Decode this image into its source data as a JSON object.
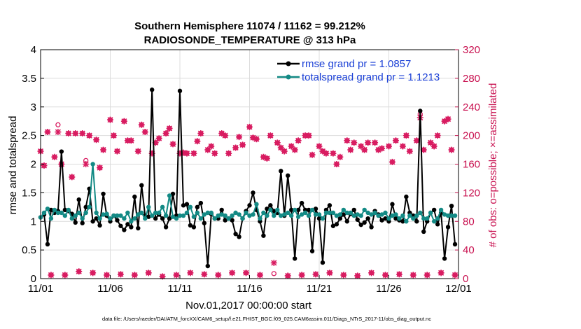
{
  "chart_data": {
    "type": "line",
    "title": "Southern Hemisphere 11074 / 11162 = 99.212%",
    "subtitle": "RADIOSONDE_TEMPERATURE @ 313 hPa",
    "xlabel": "Nov.01,2017 00:00:00 start",
    "ylabel": "rmse and totalspread",
    "ylabel_right": "# of obs: o=possible; ×=assimilated",
    "footnote": "data file: /Users/raeder/DAI/ATM_forcXX/CAM6_setup/f.e21.FHIST_BGC.f09_025.CAM6assim.011/Diags_NTrS_2017-11/obs_diag_output.nc",
    "xlim": [
      0,
      30
    ],
    "ylim": [
      0,
      4
    ],
    "ylim_right": [
      0,
      320
    ],
    "x_ticks": [
      0,
      5,
      10,
      15,
      20,
      25,
      30
    ],
    "x_tick_labels": [
      "11/01",
      "11/06",
      "11/11",
      "11/16",
      "11/21",
      "11/26",
      "12/01"
    ],
    "y_ticks": [
      0,
      0.5,
      1,
      1.5,
      2,
      2.5,
      3,
      3.5,
      4
    ],
    "y_tick_labels": [
      "0",
      "0.5",
      "1",
      "1.5",
      "2",
      "2.5",
      "3",
      "3.5",
      "4"
    ],
    "y_ticks_right": [
      0,
      40,
      80,
      120,
      160,
      200,
      240,
      280,
      320
    ],
    "y_tick_labels_right": [
      "0",
      "40",
      "80",
      "120",
      "160",
      "200",
      "240",
      "280",
      "320"
    ],
    "legend": [
      {
        "label": "rmse grand pr = 1.0857",
        "color": "#000000",
        "marker": "dot"
      },
      {
        "label": "totalspread grand pr = 1.1213",
        "color": "#138a85",
        "marker": "dot"
      }
    ],
    "colors": {
      "rmse": "#000000",
      "spread": "#138a85",
      "obs": "#d81b60",
      "obs_label": "#c8104f"
    },
    "x": [
      0.0,
      0.25,
      0.5,
      0.75,
      1.0,
      1.25,
      1.5,
      1.75,
      2.0,
      2.25,
      2.5,
      2.75,
      3.0,
      3.25,
      3.5,
      3.75,
      4.0,
      4.25,
      4.5,
      4.75,
      5.0,
      5.25,
      5.5,
      5.75,
      6.0,
      6.25,
      6.5,
      6.75,
      7.0,
      7.25,
      7.5,
      7.75,
      8.0,
      8.25,
      8.5,
      8.75,
      9.0,
      9.25,
      9.5,
      9.75,
      10.0,
      10.25,
      10.5,
      10.75,
      11.0,
      11.25,
      11.5,
      11.75,
      12.0,
      12.25,
      12.5,
      12.75,
      13.0,
      13.25,
      13.5,
      13.75,
      14.0,
      14.25,
      14.5,
      14.75,
      15.0,
      15.25,
      15.5,
      15.75,
      16.0,
      16.25,
      16.5,
      16.75,
      17.0,
      17.25,
      17.5,
      17.75,
      18.0,
      18.25,
      18.5,
      18.75,
      19.0,
      19.25,
      19.5,
      19.75,
      20.0,
      20.25,
      20.5,
      20.75,
      21.0,
      21.25,
      21.5,
      21.75,
      22.0,
      22.25,
      22.5,
      22.75,
      23.0,
      23.25,
      23.5,
      23.75,
      24.0,
      24.25,
      24.5,
      24.75,
      25.0,
      25.25,
      25.5,
      25.75,
      26.0,
      26.25,
      26.5,
      26.75,
      27.0,
      27.25,
      27.5,
      27.75,
      28.0,
      28.25,
      28.5,
      28.75,
      29.0,
      29.25,
      29.5,
      29.75
    ],
    "series": [
      {
        "name": "rmse",
        "color": "#000000",
        "values": [
          1.07,
          1.12,
          0.6,
          1.2,
          1.15,
          1.18,
          2.22,
          1.2,
          1.18,
          1.13,
          0.98,
          1.38,
          0.97,
          1.25,
          1.57,
          1.0,
          1.05,
          0.93,
          1.48,
          1.1,
          1.0,
          1.1,
          1.02,
          0.92,
          0.85,
          0.95,
          0.9,
          1.43,
          0.88,
          1.63,
          1.1,
          1.08,
          3.3,
          1.05,
          1.12,
          1.05,
          0.9,
          1.05,
          1.48,
          1.1,
          3.28,
          1.28,
          1.3,
          0.93,
          0.9,
          1.25,
          1.32,
          0.97,
          0.22,
          1.13,
          1.05,
          1.05,
          1.2,
          1.02,
          1.05,
          1.02,
          0.78,
          0.73,
          1.05,
          1.18,
          1.28,
          1.5,
          1.2,
          1.0,
          0.75,
          1.22,
          1.28,
          1.18,
          1.15,
          1.88,
          1.1,
          1.8,
          1.2,
          0.35,
          1.2,
          1.32,
          1.2,
          1.2,
          0.48,
          1.22,
          1.05,
          0.28,
          1.2,
          1.28,
          0.92,
          0.95,
          1.05,
          1.12,
          1.0,
          1.13,
          1.2,
          1.03,
          0.94,
          0.98,
          1.05,
          0.9,
          1.18,
          1.12,
          1.02,
          1.05,
          1.0,
          1.3,
          1.05,
          1.02,
          1.0,
          1.43,
          1.15,
          1.1,
          1.0,
          2.93,
          0.82,
          1.0,
          1.15,
          1.2,
          0.95,
          1.15,
          0.35,
          0.9,
          1.27,
          0.6
        ]
      },
      {
        "name": "totalspread",
        "color": "#138a85",
        "values": [
          1.07,
          1.15,
          1.22,
          1.05,
          1.2,
          1.15,
          1.15,
          1.1,
          1.2,
          1.05,
          1.1,
          1.15,
          1.05,
          1.15,
          1.25,
          2.0,
          1.15,
          1.05,
          1.12,
          1.13,
          1.05,
          1.1,
          1.1,
          1.1,
          1.05,
          1.15,
          1.0,
          1.05,
          1.12,
          1.15,
          1.05,
          1.25,
          1.1,
          1.15,
          1.15,
          1.25,
          1.1,
          1.45,
          1.08,
          1.05,
          1.1,
          1.1,
          1.15,
          1.25,
          1.08,
          1.15,
          1.05,
          1.12,
          1.15,
          1.15,
          1.05,
          1.1,
          1.12,
          1.1,
          1.05,
          1.1,
          1.15,
          1.12,
          1.05,
          1.15,
          1.1,
          1.12,
          1.3,
          1.05,
          1.15,
          1.1,
          1.2,
          1.1,
          1.2,
          1.1,
          1.12,
          1.15,
          1.1,
          1.2,
          1.08,
          1.12,
          1.15,
          1.1,
          1.2,
          1.12,
          1.12,
          1.05,
          1.15,
          1.15,
          1.15,
          1.1,
          1.12,
          1.2,
          1.15,
          1.15,
          1.1,
          1.12,
          1.1,
          1.2,
          1.15,
          1.12,
          1.15,
          1.1,
          1.12,
          1.15,
          1.05,
          1.1,
          1.12,
          1.05,
          1.1,
          1.0,
          1.1,
          1.05,
          1.1,
          1.15,
          1.05,
          1.05,
          1.15,
          1.0,
          1.05,
          1.2,
          1.12,
          1.1,
          1.1,
          1.1
        ]
      },
      {
        "name": "obs_possible",
        "color": "#d81b60",
        "axis": "right",
        "marker": "circle",
        "values": [
          178,
          158,
          205,
          5,
          170,
          215,
          160,
          5,
          203,
          142,
          203,
          10,
          203,
          165,
          200,
          8,
          194,
          155,
          180,
          5,
          222,
          200,
          178,
          6,
          220,
          193,
          193,
          5,
          178,
          215,
          205,
          8,
          175,
          190,
          196,
          3,
          203,
          210,
          188,
          5,
          175,
          176,
          175,
          8,
          175,
          192,
          203,
          6,
          180,
          185,
          175,
          5,
          203,
          200,
          175,
          8,
          183,
          198,
          187,
          8,
          212,
          197,
          195,
          5,
          170,
          168,
          200,
          7,
          190,
          183,
          178,
          4,
          185,
          180,
          193,
          5,
          200,
          200,
          173,
          6,
          185,
          178,
          175,
          8,
          175,
          160,
          170,
          5,
          193,
          180,
          190,
          4,
          185,
          180,
          190,
          8,
          190,
          180,
          182,
          5,
          185,
          163,
          193,
          6,
          185,
          200,
          178,
          5,
          193,
          230,
          180,
          5,
          190,
          185,
          200,
          8,
          220,
          223,
          180,
          5
        ]
      },
      {
        "name": "obs_assimilated",
        "color": "#d81b60",
        "axis": "right",
        "marker": "x",
        "values": [
          178,
          158,
          205,
          5,
          170,
          205,
          160,
          5,
          203,
          142,
          203,
          10,
          203,
          160,
          200,
          8,
          194,
          155,
          180,
          5,
          222,
          200,
          178,
          6,
          220,
          193,
          193,
          5,
          178,
          215,
          205,
          8,
          175,
          190,
          196,
          3,
          203,
          210,
          188,
          5,
          175,
          176,
          175,
          8,
          175,
          192,
          203,
          6,
          180,
          185,
          175,
          5,
          203,
          200,
          175,
          8,
          183,
          198,
          187,
          8,
          212,
          197,
          195,
          5,
          170,
          168,
          200,
          22,
          190,
          183,
          178,
          4,
          185,
          180,
          193,
          5,
          200,
          200,
          173,
          6,
          185,
          178,
          175,
          8,
          175,
          160,
          170,
          5,
          193,
          180,
          190,
          4,
          185,
          180,
          190,
          8,
          190,
          180,
          182,
          5,
          185,
          163,
          193,
          6,
          185,
          200,
          178,
          5,
          193,
          225,
          180,
          5,
          190,
          185,
          200,
          8,
          220,
          223,
          180,
          5
        ]
      }
    ]
  }
}
